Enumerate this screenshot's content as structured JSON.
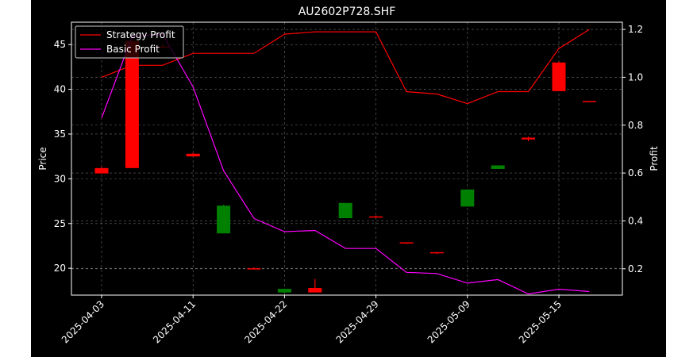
{
  "chart_data": {
    "type": "candlestick_with_lines",
    "title": "AU2602P728.SHF",
    "ylabel_left": "Price",
    "ylabel_right": "Profit",
    "ylim_left": [
      17,
      47.5
    ],
    "ylim_right": [
      0.09,
      1.23
    ],
    "yticks_left": [
      20,
      25,
      30,
      35,
      40,
      45
    ],
    "yticks_right": [
      0.2,
      0.4,
      0.6,
      0.8,
      1.0,
      1.2
    ],
    "xticks": [
      "2025-04-03",
      "2025-04-11",
      "2025-04-22",
      "2025-04-29",
      "2025-05-09",
      "2025-05-15"
    ],
    "grid": true,
    "legend_position": "top-left",
    "dates": [
      "2025-04-03",
      "2025-04-07",
      "2025-04-09",
      "2025-04-11",
      "2025-04-14",
      "2025-04-17",
      "2025-04-22",
      "2025-04-24",
      "2025-04-27",
      "2025-04-29",
      "2025-05-04",
      "2025-05-06",
      "2025-05-09",
      "2025-05-11",
      "2025-05-13",
      "2025-05-15",
      "2025-05-18"
    ],
    "candles": [
      {
        "open": 30.6,
        "close": 31.2,
        "high": 31.3,
        "low": 30.6,
        "color": "#ff0000"
      },
      {
        "open": 31.2,
        "close": 45.4,
        "high": 45.5,
        "low": 31.2,
        "color": "#ff0000"
      },
      {
        "open": 44.7,
        "close": 44.8,
        "high": 45.0,
        "low": 44.6,
        "color": "#ff0000"
      },
      {
        "open": 32.5,
        "close": 32.8,
        "high": 32.9,
        "low": 32.5,
        "color": "#ff0000"
      },
      {
        "open": 27.0,
        "close": 23.9,
        "high": 27.1,
        "low": 23.9,
        "color": "#008000"
      },
      {
        "open": 20.0,
        "close": 20.0,
        "high": 20.1,
        "low": 19.9,
        "color": "#ff0000"
      },
      {
        "open": 17.7,
        "close": 17.3,
        "high": 17.7,
        "low": 17.2,
        "color": "#008000"
      },
      {
        "open": 17.3,
        "close": 17.8,
        "high": 18.8,
        "low": 17.3,
        "color": "#ff0000"
      },
      {
        "open": 27.3,
        "close": 25.6,
        "high": 27.3,
        "low": 25.6,
        "color": "#008000"
      },
      {
        "open": 25.7,
        "close": 25.8,
        "high": 25.9,
        "low": 25.6,
        "color": "#ff0000"
      },
      {
        "open": 22.8,
        "close": 22.9,
        "high": 22.9,
        "low": 22.7,
        "color": "#ff0000"
      },
      {
        "open": 21.7,
        "close": 21.8,
        "high": 21.8,
        "low": 21.6,
        "color": "#ff0000"
      },
      {
        "open": 28.8,
        "close": 26.9,
        "high": 28.8,
        "low": 26.9,
        "color": "#008000"
      },
      {
        "open": 31.5,
        "close": 31.1,
        "high": 31.5,
        "low": 31.1,
        "color": "#008000"
      },
      {
        "open": 34.4,
        "close": 34.6,
        "high": 34.7,
        "low": 34.2,
        "color": "#ff0000"
      },
      {
        "open": 39.8,
        "close": 43.0,
        "high": 43.1,
        "low": 39.8,
        "color": "#ff0000"
      },
      {
        "open": 38.6,
        "close": 38.7,
        "high": 38.7,
        "low": 38.6,
        "color": "#ff0000"
      }
    ],
    "series": [
      {
        "name": "Strategy Profit",
        "axis": "right",
        "color": "#ff0000",
        "values": [
          1.0,
          1.05,
          1.05,
          1.1,
          1.1,
          1.1,
          1.18,
          1.19,
          1.19,
          1.19,
          0.94,
          0.93,
          0.89,
          0.94,
          0.94,
          1.12,
          1.2
        ]
      },
      {
        "name": "Basic Profit",
        "axis": "right",
        "color": "#ff00ff",
        "values": [
          0.83,
          1.17,
          1.18,
          0.96,
          0.61,
          0.41,
          0.355,
          0.36,
          0.285,
          0.285,
          0.185,
          0.18,
          0.14,
          0.155,
          0.095,
          0.115,
          0.105
        ]
      }
    ]
  }
}
